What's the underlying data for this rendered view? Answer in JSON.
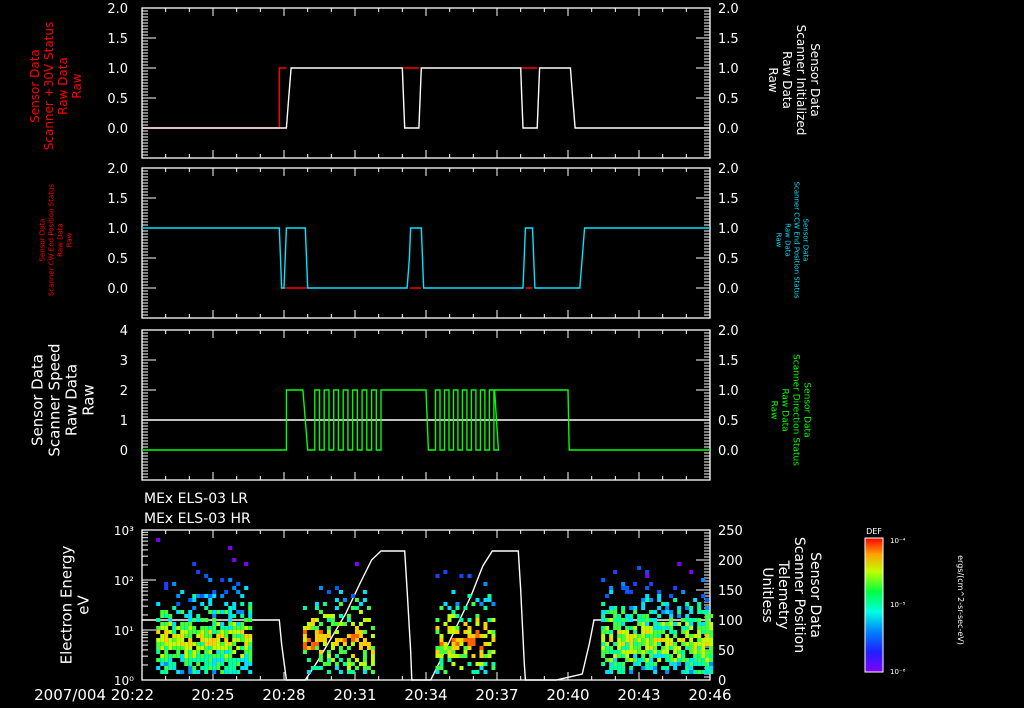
{
  "chart_data": [
    {
      "type": "line",
      "panel": 1,
      "left_ylabel": [
        "Sensor Data",
        "Scanner +30V Status",
        "Raw Data",
        "Raw"
      ],
      "left_ylabel_color": "#ff0000",
      "right_ylabel": [
        "Sensor Data",
        "Scanner Initialized",
        "Raw Data",
        "Raw"
      ],
      "right_ylabel_color": "#ffffff",
      "left_ylim": [
        -0.5,
        2.0
      ],
      "left_yticks": [
        "2.0",
        "1.5",
        "1.0",
        "0.5",
        "0.0"
      ],
      "right_ylim": [
        -0.5,
        2.0
      ],
      "right_yticks": [
        "2.0",
        "1.5",
        "1.0",
        "0.5",
        "0.0"
      ],
      "series": [
        {
          "name": "Scanner +30V Status",
          "color": "#ff0000",
          "x": [
            "20:22",
            "20:27.8",
            "20:28.0",
            "20:33.1",
            "20:33.8",
            "20:37.9",
            "20:38.7",
            "20:46"
          ],
          "values": [
            0,
            0,
            1,
            1,
            1,
            1,
            1,
            1
          ]
        },
        {
          "name": "Scanner Initialized",
          "color": "#ffffff",
          "x": [
            "20:22",
            "20:28.0",
            "20:28.2",
            "20:32.9",
            "20:33.4",
            "20:38.0",
            "20:38.6",
            "20:40.2",
            "20:40.4",
            "20:46"
          ],
          "values": [
            0,
            0,
            1,
            1,
            0,
            1,
            0,
            1,
            0,
            0
          ]
        }
      ]
    },
    {
      "type": "line",
      "panel": 2,
      "left_ylabel": [
        "Sensor Data",
        "Scanner CW End Position Status",
        "Raw Data",
        "Raw"
      ],
      "left_ylabel_color": "#ff0000",
      "right_ylabel": [
        "Sensor Data",
        "Scanner CCW End Position Status",
        "Raw Data",
        "Raw"
      ],
      "right_ylabel_color": "#00e5ff",
      "left_ylim": [
        -0.5,
        2.0
      ],
      "left_yticks": [
        "2.0",
        "1.5",
        "1.0",
        "0.5",
        "0.0"
      ],
      "right_ylim": [
        -0.5,
        2.0
      ],
      "right_yticks": [
        "2.0",
        "1.5",
        "1.0",
        "0.5",
        "0.0"
      ],
      "series": [
        {
          "name": "Scanner CW End Position Status",
          "color": "#ff0000",
          "values_note": "0 throughout, overlaid by cyan"
        },
        {
          "name": "Scanner CCW End Position Status",
          "color": "#00e5ff",
          "x": [
            "20:22",
            "20:27.8",
            "20:28.0",
            "20:29.0",
            "20:33.2",
            "20:33.8",
            "20:38.1",
            "20:38.5",
            "20:40.5",
            "20:46"
          ],
          "values": [
            1,
            0,
            1,
            0,
            1,
            0,
            1,
            0,
            1,
            1
          ]
        }
      ]
    },
    {
      "type": "line",
      "panel": 3,
      "left_ylabel": [
        "Sensor Data",
        "Scanner Speed",
        "Raw Data",
        "Raw"
      ],
      "left_ylabel_color": "#ffffff",
      "right_ylabel": [
        "Sensor Data",
        "Scanner Direction Status",
        "Raw Data",
        "Raw"
      ],
      "right_ylabel_color": "#00ff00",
      "left_ylim": [
        -1,
        4
      ],
      "left_yticks": [
        "4",
        "3",
        "2",
        "1",
        "0"
      ],
      "right_ylim": [
        -0.5,
        2.0
      ],
      "right_yticks": [
        "2.0",
        "1.5",
        "1.0",
        "0.5",
        "0.0"
      ],
      "series": [
        {
          "name": "Scanner Speed",
          "color": "#ffffff",
          "values_note": "constant 1"
        },
        {
          "name": "Scanner Direction Status",
          "color": "#00ff00",
          "values_note": "0 until 20:28, 1 until 20:29, oscillates 0/1 until 20:32, 1 until 20:34, oscillates until 20:37, 1 until 20:40, then 0"
        }
      ]
    },
    {
      "type": "heatmap",
      "panel": 4,
      "titles": [
        "MEx ELS-03 LR",
        "MEx ELS-03 HR"
      ],
      "left_ylabel": [
        "Electron Energy",
        "eV"
      ],
      "left_ylim_log": [
        1,
        1000
      ],
      "left_yticks": [
        "10^3",
        "10^2",
        "10^1",
        "10^0"
      ],
      "right_ylabel": [
        "Sensor Data",
        "Scanner Position",
        "Telemetry",
        "Unitless"
      ],
      "right_ylim": [
        0,
        250
      ],
      "right_yticks": [
        "250",
        "200",
        "150",
        "100",
        "50",
        "0"
      ],
      "overlay_line": {
        "name": "Scanner Position",
        "color": "#ffffff"
      },
      "colorbar": {
        "label": "DEF",
        "ticks": [
          "10^-4",
          "10^-5",
          "10^-6"
        ],
        "units": "ergs/(cm^2-sr-sec-eV)"
      }
    }
  ],
  "x_axis": {
    "start_label": "2007/004 20:22",
    "ticks": [
      "20:25",
      "20:28",
      "20:31",
      "20:34",
      "20:37",
      "20:40",
      "20:43",
      "20:46"
    ]
  }
}
